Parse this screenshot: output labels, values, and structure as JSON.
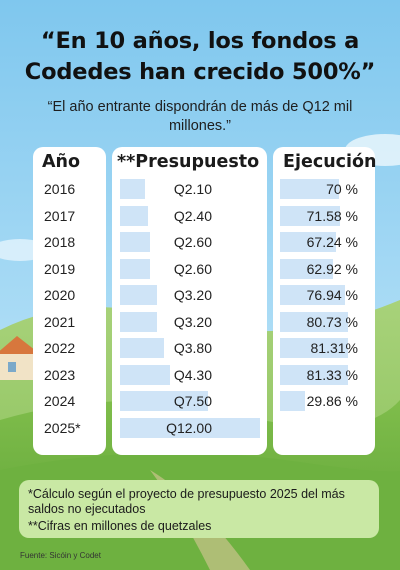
{
  "title": "“En 10 años, los fondos a Codedes han crecido 500%”",
  "subtitle": "“El año entrante dispondrán de más de Q12 mil millones.”",
  "headers": {
    "year": "Año",
    "budget": "**Presupuesto",
    "execution": "Ejecución"
  },
  "notes": {
    "n1": "*Cálculo según el proyecto de presupuesto 2025 del más saldos no ejecutados",
    "n2": "**Cifras en millones de quetzales"
  },
  "source": "Fuente: Sicóin y Codet",
  "colors": {
    "sky": "#7fc7ee",
    "hill": "#8cc55c",
    "panel": "#ffffff",
    "bar": "#cfe4f7",
    "notes_bg": "#c9e8a4"
  },
  "chart_data": {
    "type": "table",
    "columns": [
      "Año",
      "**Presupuesto",
      "Ejecución"
    ],
    "rows": [
      {
        "year": "2016",
        "budget": "Q2.10",
        "execution": "70 %"
      },
      {
        "year": "2017",
        "budget": "Q2.40",
        "execution": "71.58 %"
      },
      {
        "year": "2018",
        "budget": "Q2.60",
        "execution": "67.24 %"
      },
      {
        "year": "2019",
        "budget": "Q2.60",
        "execution": "62.92 %"
      },
      {
        "year": "2020",
        "budget": "Q3.20",
        "execution": "76.94 %"
      },
      {
        "year": "2021",
        "budget": "Q3.20",
        "execution": "80.73 %"
      },
      {
        "year": "2022",
        "budget": "Q3.80",
        "execution": "81.31%"
      },
      {
        "year": "2023",
        "budget": "Q4.30",
        "execution": "81.33 %"
      },
      {
        "year": "2024",
        "budget": "Q7.50",
        "execution": "29.86 %"
      },
      {
        "year": "2025*",
        "budget": "Q12.00",
        "execution": ""
      }
    ],
    "budget_values": [
      2.1,
      2.4,
      2.6,
      2.6,
      3.2,
      3.2,
      3.8,
      4.3,
      7.5,
      12.0
    ],
    "execution_values": [
      70,
      71.58,
      67.24,
      62.92,
      76.94,
      80.73,
      81.31,
      81.33,
      29.86,
      null
    ]
  }
}
